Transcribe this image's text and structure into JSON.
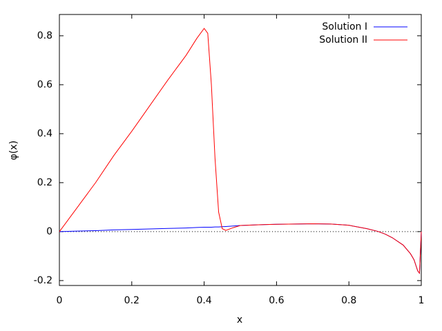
{
  "chart_data": {
    "type": "line",
    "xlabel": "x",
    "ylabel": "φ(x)",
    "x": [
      0,
      0.05,
      0.1,
      0.15,
      0.2,
      0.25,
      0.3,
      0.35,
      0.38,
      0.4,
      0.41,
      0.42,
      0.43,
      0.44,
      0.45,
      0.46,
      0.48,
      0.5,
      0.55,
      0.6,
      0.65,
      0.7,
      0.75,
      0.8,
      0.85,
      0.88,
      0.9,
      0.92,
      0.95,
      0.97,
      0.98,
      0.99,
      0.995,
      1.0
    ],
    "series": [
      {
        "name": "Solution I",
        "color": "#0000ff",
        "values": [
          0,
          0.002,
          0.004,
          0.007,
          0.009,
          0.011,
          0.013,
          0.015,
          0.017,
          0.018,
          0.018,
          0.018,
          0.019,
          0.019,
          0.02,
          0.021,
          0.023,
          0.025,
          0.028,
          0.03,
          0.031,
          0.032,
          0.031,
          0.026,
          0.012,
          0.001,
          -0.01,
          -0.025,
          -0.055,
          -0.09,
          -0.115,
          -0.16,
          -0.17,
          0
        ]
      },
      {
        "name": "Solution II",
        "color": "#ff0000",
        "values": [
          0,
          0.1,
          0.2,
          0.31,
          0.41,
          0.515,
          0.62,
          0.72,
          0.79,
          0.83,
          0.81,
          0.6,
          0.3,
          0.08,
          0.012,
          0.005,
          0.016,
          0.025,
          0.028,
          0.03,
          0.031,
          0.032,
          0.031,
          0.026,
          0.012,
          0.001,
          -0.01,
          -0.025,
          -0.055,
          -0.09,
          -0.115,
          -0.16,
          -0.17,
          0
        ]
      }
    ],
    "xlim": [
      0,
      1
    ],
    "xticks": [
      0,
      0.2,
      0.4,
      0.6,
      0.8,
      1
    ],
    "ylim": [
      -0.22,
      0.887
    ],
    "yticks": [
      -0.2,
      0,
      0.2,
      0.4,
      0.6,
      0.8
    ],
    "zero_line": true,
    "legend": "top-right"
  }
}
